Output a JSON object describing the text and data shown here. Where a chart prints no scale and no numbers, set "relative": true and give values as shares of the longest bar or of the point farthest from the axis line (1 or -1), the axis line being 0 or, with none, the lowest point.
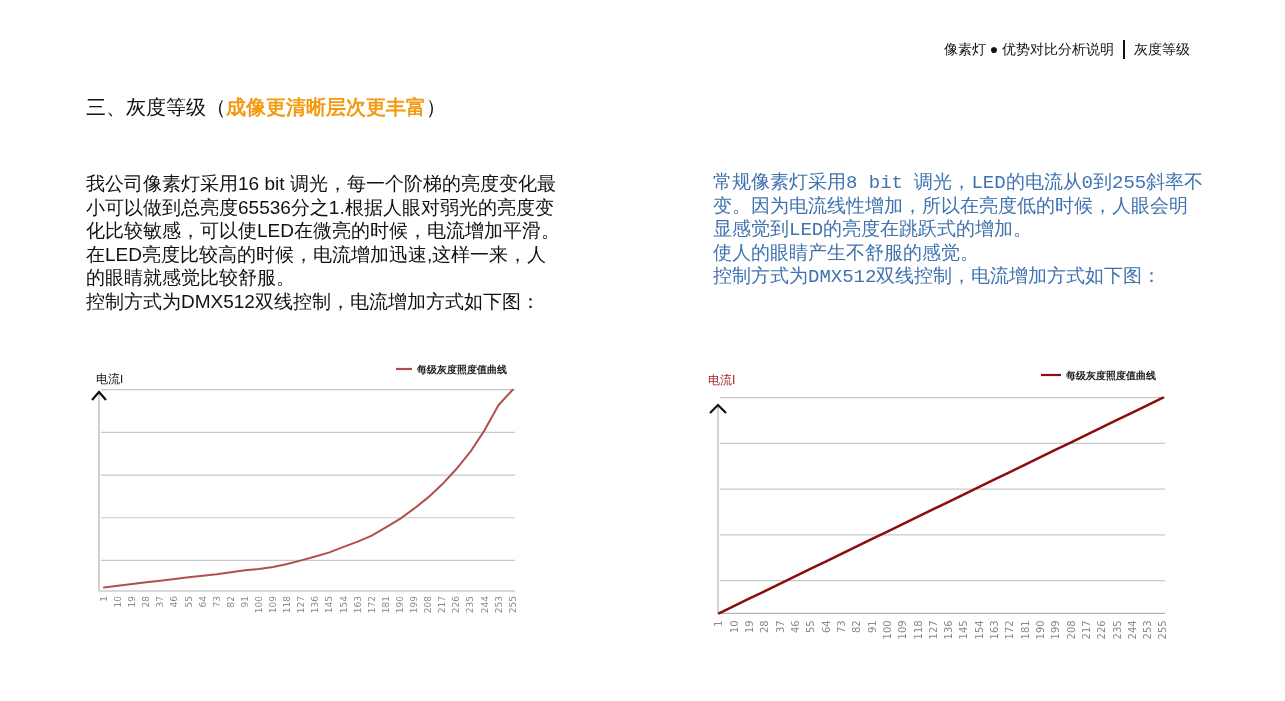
{
  "chart_data": [
    {
      "type": "line",
      "title": "三、灰度等级（**成像更清晰层次更丰富**）",
      "ylabel": "电流I",
      "relative": true,
      "grid": "y",
      "legend": "top right",
      "categories": [
        "1",
        "10",
        "19",
        "28",
        "37",
        "46",
        "55",
        "64",
        "73",
        "82",
        "91",
        "100",
        "109",
        "118",
        "127",
        "136",
        "145",
        "154",
        "163",
        "172",
        "181",
        "190",
        "199",
        "208",
        "217",
        "226",
        "235",
        "244",
        "253",
        "255"
      ],
      "series": [
        {
          "name": "每级灰度照度值曲线",
          "color": "#b0504d",
          "values": [
            0.017,
            0.026,
            0.035,
            0.043,
            0.051,
            0.06,
            0.068,
            0.076,
            0.083,
            0.093,
            0.103,
            0.109,
            0.119,
            0.134,
            0.152,
            0.171,
            0.192,
            0.219,
            0.245,
            0.275,
            0.316,
            0.358,
            0.409,
            0.465,
            0.53,
            0.606,
            0.692,
            0.798,
            0.924,
            1
          ]
        }
      ],
      "annotations": [
        "我公司像素灯采用16 bit 调光，每一个阶梯的亮度变化最小可以做到总亮度65536分之1.根据人眼对弱光的亮度变化比较敏感，可以使LED在微亮的时候，电流增加平滑。在LED亮度比较高的时候，电流增加迅速,这样一来，人的眼睛就感觉比较舒服。",
        "控制方式为DMX512双线控制，电流增加方式如下图："
      ]
    },
    {
      "type": "line",
      "ylabel": "电流I",
      "relative": true,
      "grid": "y",
      "legend": "top right",
      "categories": [
        "1",
        "10",
        "19",
        "28",
        "37",
        "46",
        "55",
        "64",
        "73",
        "82",
        "91",
        "100",
        "109",
        "118",
        "127",
        "136",
        "145",
        "154",
        "163",
        "172",
        "181",
        "190",
        "199",
        "208",
        "217",
        "226",
        "235",
        "244",
        "253",
        "255"
      ],
      "series": [
        {
          "name": "每级灰度照度值曲线",
          "color": "#8b0d0d",
          "values": [
            0,
            0.034,
            0.069,
            0.103,
            0.138,
            0.172,
            0.207,
            0.241,
            0.276,
            0.31,
            0.345,
            0.379,
            0.414,
            0.448,
            0.483,
            0.517,
            0.552,
            0.586,
            0.621,
            0.655,
            0.69,
            0.724,
            0.759,
            0.793,
            0.828,
            0.862,
            0.897,
            0.931,
            0.966,
            1
          ]
        }
      ],
      "annotations": [
        "像素灯 ● 优势对比分析说明",
        "灰度等级",
        "常规像素灯采用8 bit 调光，LED的电流从0到255斜率不变。因为电流线性增加，所以在亮度低的时候，人眼会明显感觉到LED的亮度在跳跃式的增加。",
        "使人的眼睛产生不舒服的感觉。",
        "控制方式为DMX512双线控制，电流增加方式如下图："
      ]
    }
  ]
}
